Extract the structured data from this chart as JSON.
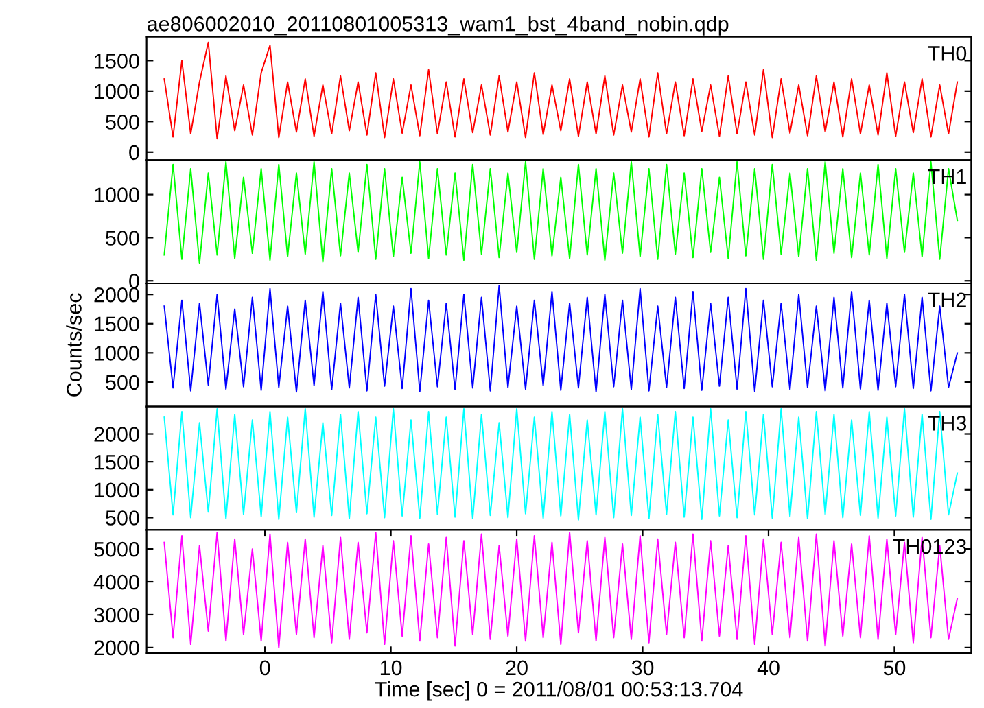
{
  "chart_data": [
    {
      "type": "line",
      "title": "ae806002010_20110801005313_wam1_bst_4band_nobin.qdp",
      "xlim": [
        -9.4,
        56.1
      ],
      "ylim": [
        -130,
        1890
      ],
      "yticks": [
        0,
        500,
        1000,
        1500
      ],
      "tick_labels": "y",
      "grid": false,
      "x": [
        -8,
        -7.3,
        -6.6,
        -5.9,
        -5.2,
        -4.5,
        -3.8,
        -3.1,
        -2.4,
        -1.7,
        -1,
        -0.3,
        0.4,
        1.1,
        1.8,
        2.5,
        3.2,
        3.9,
        4.6,
        5.3,
        6,
        6.7,
        7.4,
        8.1,
        8.8,
        9.5,
        10.2,
        10.9,
        11.6,
        12.3,
        13,
        13.7,
        14.4,
        15.1,
        15.8,
        16.5,
        17.2,
        17.9,
        18.6,
        19.3,
        20,
        20.7,
        21.4,
        22.1,
        22.8,
        23.5,
        24.2,
        24.9,
        25.6,
        26.3,
        27,
        27.7,
        28.4,
        29.1,
        29.8,
        30.5,
        31.2,
        31.9,
        32.6,
        33.3,
        34,
        34.7,
        35.4,
        36.1,
        36.8,
        37.5,
        38.2,
        38.9,
        39.6,
        40.3,
        41,
        41.7,
        42.4,
        43.1,
        43.8,
        44.5,
        45.2,
        45.9,
        46.6,
        47.3,
        48,
        48.7,
        49.4,
        50.1,
        50.8,
        51.5,
        52.2,
        52.9,
        53.6,
        54.3,
        55
      ],
      "series": [
        {
          "name": "TH0",
          "color": "#ff0000",
          "values": [
            1200,
            250,
            1500,
            300,
            1150,
            1800,
            220,
            1250,
            350,
            1100,
            280,
            1300,
            1750,
            240,
            1150,
            330,
            1200,
            260,
            1100,
            300,
            1250,
            350,
            1150,
            280,
            1300,
            240,
            1200,
            310,
            1100,
            270,
            1350,
            300,
            1150,
            250,
            1200,
            320,
            1100,
            280,
            1250,
            330,
            1150,
            240,
            1300,
            290,
            1100,
            350,
            1200,
            260,
            1150,
            300,
            1250,
            280,
            1100,
            330,
            1200,
            250,
            1300,
            300,
            1150,
            270,
            1200,
            340,
            1100,
            260,
            1250,
            300,
            1150,
            280,
            1350,
            240,
            1200,
            310,
            1100,
            270,
            1250,
            330,
            1150,
            250,
            1200,
            300,
            1100,
            280,
            1300,
            260,
            1150,
            320,
            1200,
            250,
            1100,
            300,
            1150
          ]
        }
      ]
    },
    {
      "type": "line",
      "xlim": [
        -9.4,
        56.1
      ],
      "ylim": [
        -30,
        1400
      ],
      "yticks": [
        0,
        500,
        1000
      ],
      "tick_labels": "y",
      "grid": false,
      "x": [
        -8,
        -7.3,
        -6.6,
        -5.9,
        -5.2,
        -4.5,
        -3.8,
        -3.1,
        -2.4,
        -1.7,
        -1,
        -0.3,
        0.4,
        1.1,
        1.8,
        2.5,
        3.2,
        3.9,
        4.6,
        5.3,
        6,
        6.7,
        7.4,
        8.1,
        8.8,
        9.5,
        10.2,
        10.9,
        11.6,
        12.3,
        13,
        13.7,
        14.4,
        15.1,
        15.8,
        16.5,
        17.2,
        17.9,
        18.6,
        19.3,
        20,
        20.7,
        21.4,
        22.1,
        22.8,
        23.5,
        24.2,
        24.9,
        25.6,
        26.3,
        27,
        27.7,
        28.4,
        29.1,
        29.8,
        30.5,
        31.2,
        31.9,
        32.6,
        33.3,
        34,
        34.7,
        35.4,
        36.1,
        36.8,
        37.5,
        38.2,
        38.9,
        39.6,
        40.3,
        41,
        41.7,
        42.4,
        43.1,
        43.8,
        44.5,
        45.2,
        45.9,
        46.6,
        47.3,
        48,
        48.7,
        49.4,
        50.1,
        50.8,
        51.5,
        52.2,
        52.9,
        53.6,
        54.3,
        55
      ],
      "series": [
        {
          "name": "TH1",
          "color": "#00ff00",
          "values": [
            300,
            1350,
            250,
            1300,
            200,
            1250,
            300,
            1380,
            260,
            1200,
            320,
            1300,
            240,
            1350,
            280,
            1250,
            310,
            1380,
            220,
            1300,
            290,
            1250,
            330,
            1350,
            250,
            1300,
            280,
            1200,
            320,
            1380,
            260,
            1300,
            300,
            1250,
            240,
            1350,
            310,
            1300,
            270,
            1250,
            330,
            1380,
            250,
            1300,
            290,
            1200,
            260,
            1350,
            300,
            1300,
            240,
            1250,
            320,
            1380,
            280,
            1300,
            250,
            1350,
            310,
            1250,
            270,
            1300,
            330,
            1200,
            260,
            1380,
            290,
            1300,
            250,
            1350,
            310,
            1250,
            280,
            1300,
            240,
            1380,
            320,
            1300,
            270,
            1250,
            300,
            1350,
            260,
            1300,
            330,
            1250,
            280,
            1380,
            250,
            1300,
            700
          ]
        }
      ]
    },
    {
      "type": "line",
      "ylabel": "Counts/sec",
      "xlim": [
        -9.4,
        56.1
      ],
      "ylim": [
        80,
        2190
      ],
      "yticks": [
        500,
        1000,
        1500,
        2000
      ],
      "tick_labels": "y",
      "grid": false,
      "x": [
        -8,
        -7.3,
        -6.6,
        -5.9,
        -5.2,
        -4.5,
        -3.8,
        -3.1,
        -2.4,
        -1.7,
        -1,
        -0.3,
        0.4,
        1.1,
        1.8,
        2.5,
        3.2,
        3.9,
        4.6,
        5.3,
        6,
        6.7,
        7.4,
        8.1,
        8.8,
        9.5,
        10.2,
        10.9,
        11.6,
        12.3,
        13,
        13.7,
        14.4,
        15.1,
        15.8,
        16.5,
        17.2,
        17.9,
        18.6,
        19.3,
        20,
        20.7,
        21.4,
        22.1,
        22.8,
        23.5,
        24.2,
        24.9,
        25.6,
        26.3,
        27,
        27.7,
        28.4,
        29.1,
        29.8,
        30.5,
        31.2,
        31.9,
        32.6,
        33.3,
        34,
        34.7,
        35.4,
        36.1,
        36.8,
        37.5,
        38.2,
        38.9,
        39.6,
        40.3,
        41,
        41.7,
        42.4,
        43.1,
        43.8,
        44.5,
        45.2,
        45.9,
        46.6,
        47.3,
        48,
        48.7,
        49.4,
        50.1,
        50.8,
        51.5,
        52.2,
        52.9,
        53.6,
        54.3,
        55
      ],
      "series": [
        {
          "name": "TH2",
          "color": "#0000ff",
          "values": [
            1800,
            400,
            1900,
            350,
            1850,
            450,
            2000,
            380,
            1750,
            420,
            1950,
            360,
            2100,
            410,
            1800,
            330,
            1900,
            440,
            2050,
            370,
            1850,
            400,
            1950,
            350,
            2000,
            430,
            1800,
            390,
            2100,
            340,
            1900,
            420,
            1850,
            370,
            2000,
            400,
            1950,
            350,
            2150,
            410,
            1800,
            380,
            1900,
            440,
            2050,
            360,
            1850,
            400,
            1950,
            330,
            2000,
            420,
            1900,
            370,
            2100,
            350,
            1800,
            410,
            1950,
            390,
            2050,
            360,
            1850,
            430,
            1950,
            380,
            2100,
            340,
            1900,
            420,
            1850,
            370,
            2000,
            410,
            1800,
            350,
            1950,
            400,
            2050,
            380,
            1900,
            360,
            1850,
            420,
            2000,
            390,
            1950,
            350,
            1800,
            410,
            1000
          ]
        }
      ]
    },
    {
      "type": "line",
      "xlim": [
        -9.4,
        56.1
      ],
      "ylim": [
        280,
        2490
      ],
      "yticks": [
        500,
        1000,
        1500,
        2000
      ],
      "tick_labels": "y",
      "grid": false,
      "x": [
        -8,
        -7.3,
        -6.6,
        -5.9,
        -5.2,
        -4.5,
        -3.8,
        -3.1,
        -2.4,
        -1.7,
        -1,
        -0.3,
        0.4,
        1.1,
        1.8,
        2.5,
        3.2,
        3.9,
        4.6,
        5.3,
        6,
        6.7,
        7.4,
        8.1,
        8.8,
        9.5,
        10.2,
        10.9,
        11.6,
        12.3,
        13,
        13.7,
        14.4,
        15.1,
        15.8,
        16.5,
        17.2,
        17.9,
        18.6,
        19.3,
        20,
        20.7,
        21.4,
        22.1,
        22.8,
        23.5,
        24.2,
        24.9,
        25.6,
        26.3,
        27,
        27.7,
        28.4,
        29.1,
        29.8,
        30.5,
        31.2,
        31.9,
        32.6,
        33.3,
        34,
        34.7,
        35.4,
        36.1,
        36.8,
        37.5,
        38.2,
        38.9,
        39.6,
        40.3,
        41,
        41.7,
        42.4,
        43.1,
        43.8,
        44.5,
        45.2,
        45.9,
        46.6,
        47.3,
        48,
        48.7,
        49.4,
        50.1,
        50.8,
        51.5,
        52.2,
        52.9,
        53.6,
        54.3,
        55
      ],
      "series": [
        {
          "name": "TH3",
          "color": "#00ffff",
          "values": [
            2300,
            550,
            2400,
            500,
            2200,
            600,
            2450,
            480,
            2350,
            560,
            2250,
            520,
            2400,
            470,
            2300,
            590,
            2450,
            510,
            2200,
            540,
            2350,
            480,
            2400,
            570,
            2300,
            500,
            2450,
            530,
            2250,
            490,
            2400,
            560,
            2300,
            510,
            2450,
            480,
            2350,
            540,
            2200,
            500,
            2450,
            570,
            2300,
            490,
            2400,
            530,
            2350,
            460,
            2250,
            550,
            2400,
            500,
            2450,
            540,
            2300,
            480,
            2350,
            560,
            2400,
            510,
            2300,
            470,
            2450,
            530,
            2250,
            500,
            2400,
            550,
            2350,
            490,
            2450,
            520,
            2300,
            480,
            2400,
            560,
            2350,
            500,
            2250,
            540,
            2400,
            490,
            2300,
            530,
            2450,
            510,
            2350,
            470,
            2400,
            550,
            1300
          ]
        }
      ]
    },
    {
      "type": "line",
      "xlabel": "Time [sec] 0 = 2011/08/01 00:53:13.704",
      "xlim": [
        -9.4,
        56.1
      ],
      "xticks": [
        0,
        10,
        20,
        30,
        40,
        50
      ],
      "ylim": [
        1830,
        5580
      ],
      "yticks": [
        2000,
        3000,
        4000,
        5000
      ],
      "grid": false,
      "x": [
        -8,
        -7.3,
        -6.6,
        -5.9,
        -5.2,
        -4.5,
        -3.8,
        -3.1,
        -2.4,
        -1.7,
        -1,
        -0.3,
        0.4,
        1.1,
        1.8,
        2.5,
        3.2,
        3.9,
        4.6,
        5.3,
        6,
        6.7,
        7.4,
        8.1,
        8.8,
        9.5,
        10.2,
        10.9,
        11.6,
        12.3,
        13,
        13.7,
        14.4,
        15.1,
        15.8,
        16.5,
        17.2,
        17.9,
        18.6,
        19.3,
        20,
        20.7,
        21.4,
        22.1,
        22.8,
        23.5,
        24.2,
        24.9,
        25.6,
        26.3,
        27,
        27.7,
        28.4,
        29.1,
        29.8,
        30.5,
        31.2,
        31.9,
        32.6,
        33.3,
        34,
        34.7,
        35.4,
        36.1,
        36.8,
        37.5,
        38.2,
        38.9,
        39.6,
        40.3,
        41,
        41.7,
        42.4,
        43.1,
        43.8,
        44.5,
        45.2,
        45.9,
        46.6,
        47.3,
        48,
        48.7,
        49.4,
        50.1,
        50.8,
        51.5,
        52.2,
        52.9,
        53.6,
        54.3,
        55
      ],
      "series": [
        {
          "name": "TH0123",
          "color": "#ff00ff",
          "values": [
            5200,
            2300,
            5400,
            2100,
            5100,
            2500,
            5500,
            2200,
            5300,
            2400,
            5000,
            2200,
            5450,
            2000,
            5200,
            2400,
            5300,
            2300,
            5100,
            2150,
            5350,
            2250,
            5200,
            2450,
            5500,
            2100,
            5250,
            2350,
            5400,
            2200,
            5150,
            2300,
            5350,
            2050,
            5250,
            2400,
            5450,
            2250,
            5100,
            2350,
            5300,
            2200,
            5400,
            2300,
            5200,
            2100,
            5500,
            2450,
            5250,
            2200,
            5350,
            2300,
            5150,
            2250,
            5400,
            2150,
            5300,
            2400,
            5200,
            2300,
            5450,
            2200,
            5250,
            2350,
            5100,
            2250,
            5400,
            2100,
            5300,
            2400,
            5200,
            2300,
            5350,
            2200,
            5450,
            2050,
            5250,
            2350,
            5150,
            2300,
            5400,
            2250,
            5300,
            2400,
            5200,
            2150,
            5350,
            2300,
            5100,
            2250,
            3500
          ]
        }
      ]
    }
  ]
}
